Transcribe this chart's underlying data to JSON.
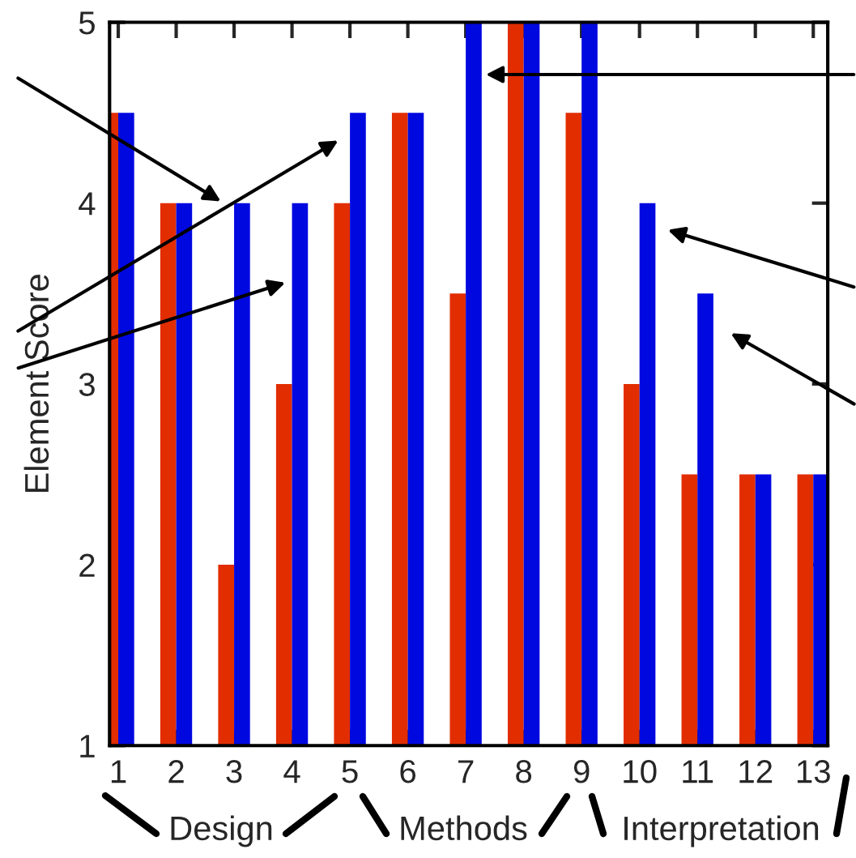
{
  "chart_data": {
    "type": "bar",
    "ylabel": "Element Score",
    "categories": [
      "1",
      "2",
      "3",
      "4",
      "5",
      "6",
      "7",
      "8",
      "9",
      "10",
      "11",
      "12",
      "13"
    ],
    "series": [
      {
        "color": "#e22d00",
        "values": [
          4.5,
          4,
          2,
          3,
          4,
          4.5,
          3.5,
          5,
          4.5,
          3,
          2.5,
          2.5,
          2.5
        ]
      },
      {
        "color": "#0008e0",
        "values": [
          4.5,
          4,
          4,
          4,
          4.5,
          4.5,
          5,
          5,
          5,
          4,
          3.5,
          2.5,
          2.5
        ]
      }
    ],
    "ylim": [
      1,
      5
    ],
    "yticks": [
      1,
      2,
      3,
      4,
      5
    ],
    "grid": false,
    "legend": false,
    "annotations": [
      "Design",
      "Methods",
      "Interpretation"
    ]
  }
}
